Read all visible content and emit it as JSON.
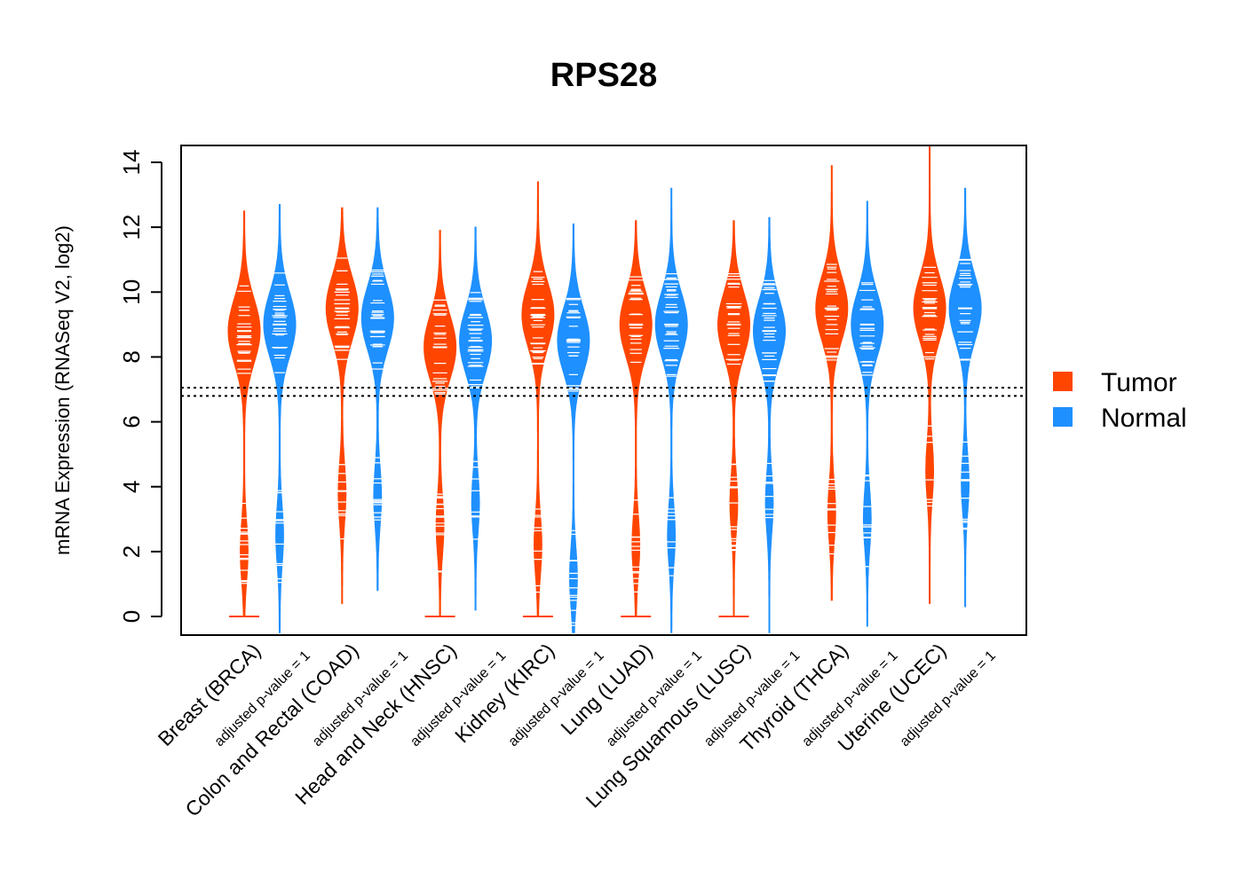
{
  "chart_data": {
    "type": "violin",
    "title": "RPS28",
    "ylabel": "mRNA Expression (RNASeq V2, log2)",
    "xlabel": "",
    "ylim": [
      -0.55,
      14.55
    ],
    "yticks": [
      "0",
      "2",
      "4",
      "6",
      "8",
      "10",
      "12",
      "14"
    ],
    "ytick_values": [
      0,
      2,
      4,
      6,
      8,
      10,
      12,
      14
    ],
    "reference_lines": [
      7.05,
      6.8
    ],
    "grid": false,
    "legend_position": "right",
    "categories": [
      {
        "name": "Breast (BRCA)",
        "pvalue_label": "adjusted p-value = 1"
      },
      {
        "name": "Colon and Rectal (COAD)",
        "pvalue_label": "adjusted p-value = 1"
      },
      {
        "name": "Head and Neck (HNSC)",
        "pvalue_label": "adjusted p-value = 1"
      },
      {
        "name": "Kidney (KIRC)",
        "pvalue_label": "adjusted p-value = 1"
      },
      {
        "name": "Lung (LUAD)",
        "pvalue_label": "adjusted p-value = 1"
      },
      {
        "name": "Lung Squamous (LUSC)",
        "pvalue_label": "adjusted p-value = 1"
      },
      {
        "name": "Thyroid (THCA)",
        "pvalue_label": "adjusted p-value = 1"
      },
      {
        "name": "Uterine (UCEC)",
        "pvalue_label": "adjusted p-value = 1"
      }
    ],
    "series": [
      {
        "name": "Tumor",
        "color": "#FF4500",
        "groups": [
          {
            "min": 0.0,
            "max": 12.5,
            "median": 8.8,
            "secondary_mode": 2.0
          },
          {
            "min": 0.4,
            "max": 12.6,
            "median": 9.5,
            "secondary_mode": 3.8
          },
          {
            "min": 0.0,
            "max": 11.9,
            "median": 8.3,
            "secondary_mode": 2.8
          },
          {
            "min": 0.0,
            "max": 13.4,
            "median": 9.3,
            "secondary_mode": 2.2
          },
          {
            "min": 0.0,
            "max": 12.2,
            "median": 9.0,
            "secondary_mode": 2.2
          },
          {
            "min": 0.0,
            "max": 12.2,
            "median": 9.0,
            "secondary_mode": 3.5
          },
          {
            "min": 0.5,
            "max": 13.9,
            "median": 9.5,
            "secondary_mode": 3.2
          },
          {
            "min": 0.4,
            "max": 14.5,
            "median": 9.5,
            "secondary_mode": 4.5
          }
        ]
      },
      {
        "name": "Normal",
        "color": "#1E90FF",
        "groups": [
          {
            "min": -0.5,
            "max": 12.7,
            "median": 9.0,
            "secondary_mode": 2.5
          },
          {
            "min": 0.8,
            "max": 12.6,
            "median": 9.2,
            "secondary_mode": 3.7
          },
          {
            "min": 0.2,
            "max": 12.0,
            "median": 8.5,
            "secondary_mode": 3.5
          },
          {
            "min": -0.5,
            "max": 12.1,
            "median": 8.5,
            "secondary_mode": 1.2
          },
          {
            "min": -0.5,
            "max": 13.2,
            "median": 9.0,
            "secondary_mode": 2.5
          },
          {
            "min": -0.5,
            "max": 12.3,
            "median": 8.8,
            "secondary_mode": 3.5
          },
          {
            "min": -0.3,
            "max": 12.8,
            "median": 9.0,
            "secondary_mode": 3.0
          },
          {
            "min": 0.3,
            "max": 13.2,
            "median": 9.5,
            "secondary_mode": 4.1
          }
        ]
      }
    ],
    "legend": [
      {
        "label": "Tumor",
        "color": "#FF4500"
      },
      {
        "label": "Normal",
        "color": "#1E90FF"
      }
    ]
  }
}
